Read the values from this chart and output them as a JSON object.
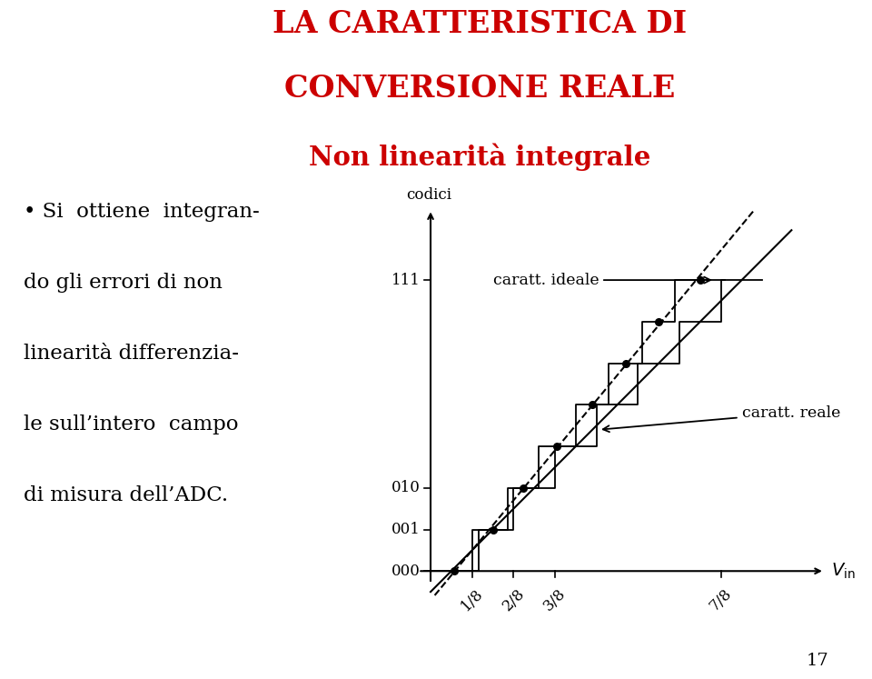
{
  "title_line1": "LA CARATTERISTICA DI",
  "title_line2": "CONVERSIONE REALE",
  "title_line3": "Non linearità integrale",
  "title_color": "#cc0000",
  "bullet_text_lines": [
    "• Si  ottiene  integran-",
    "do gli errori di non",
    "linearità differenzia-",
    "le sull’intero  campo",
    "di misura dell’ADC."
  ],
  "ylabel": "codici",
  "xlabel_math": "$V_{\\mathrm{in}}$",
  "ytick_labels": [
    "000",
    "001",
    "010",
    "111"
  ],
  "ytick_positions": [
    0,
    1,
    2,
    7
  ],
  "xtick_labels": [
    "1/8",
    "2/8",
    "3/8",
    "7/8"
  ],
  "xtick_positions": [
    1,
    2,
    3,
    7
  ],
  "page_number": "17",
  "background_color": "#ffffff",
  "line_color": "#000000",
  "annotation_ideale": "caratt. ideale",
  "annotation_reale": "caratt. reale",
  "real_boundaries": [
    0.0,
    1.15,
    1.85,
    2.6,
    3.5,
    4.3,
    5.1,
    5.9,
    7.1
  ],
  "ideal_line_x": [
    0.0,
    8.5
  ],
  "ideal_line_y": [
    -0.5,
    8.0
  ],
  "xlim": [
    -0.5,
    9.8
  ],
  "ylim": [
    -0.8,
    9.0
  ]
}
